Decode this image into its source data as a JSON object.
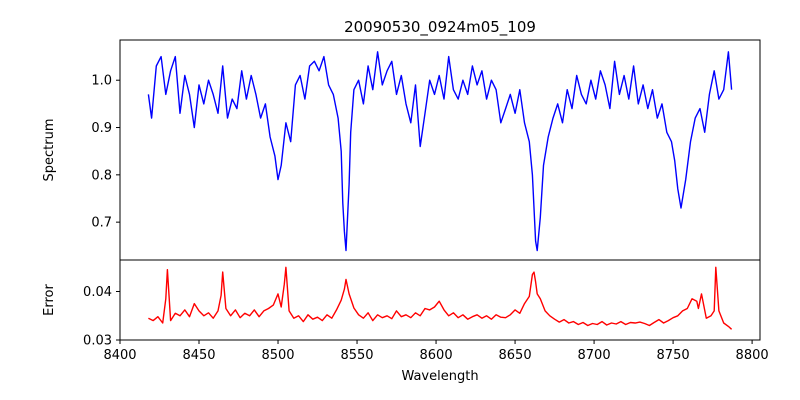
{
  "chart_data": [
    {
      "type": "line",
      "panel": "top",
      "title": "20090530_0924m05_109",
      "xlabel": "",
      "ylabel": "Spectrum",
      "xlim": [
        8400,
        8805
      ],
      "ylim": [
        0.62,
        1.085
      ],
      "yticks": [
        "0.7",
        "0.8",
        "0.9",
        "1.0"
      ],
      "grid": false,
      "series": [
        {
          "color": "#0000ff",
          "x": [
            8418,
            8420,
            8423,
            8426,
            8429,
            8432,
            8435,
            8438,
            8441,
            8444,
            8447,
            8450,
            8453,
            8456,
            8459,
            8462,
            8465,
            8468,
            8471,
            8474,
            8477,
            8480,
            8483,
            8486,
            8489,
            8492,
            8495,
            8498,
            8500,
            8502,
            8505,
            8508,
            8511,
            8514,
            8517,
            8520,
            8523,
            8526,
            8529,
            8532,
            8535,
            8538,
            8540,
            8541,
            8542,
            8543,
            8545,
            8546,
            8548,
            8551,
            8554,
            8557,
            8560,
            8563,
            8566,
            8569,
            8572,
            8575,
            8578,
            8581,
            8584,
            8587,
            8590,
            8593,
            8596,
            8599,
            8602,
            8605,
            8608,
            8611,
            8614,
            8617,
            8620,
            8623,
            8626,
            8629,
            8632,
            8635,
            8638,
            8641,
            8644,
            8647,
            8650,
            8653,
            8656,
            8659,
            8661,
            8662,
            8663,
            8664,
            8666,
            8668,
            8671,
            8674,
            8677,
            8680,
            8683,
            8686,
            8689,
            8692,
            8695,
            8698,
            8701,
            8704,
            8707,
            8710,
            8713,
            8716,
            8719,
            8722,
            8725,
            8728,
            8731,
            8734,
            8737,
            8740,
            8743,
            8746,
            8749,
            8751,
            8753,
            8755,
            8758,
            8761,
            8764,
            8767,
            8770,
            8773,
            8776,
            8779,
            8782,
            8785,
            8787
          ],
          "y": [
            0.97,
            0.92,
            1.03,
            1.05,
            0.97,
            1.02,
            1.05,
            0.93,
            1.01,
            0.97,
            0.9,
            0.99,
            0.95,
            1.0,
            0.97,
            0.93,
            1.03,
            0.92,
            0.96,
            0.94,
            1.02,
            0.96,
            1.01,
            0.97,
            0.92,
            0.95,
            0.88,
            0.84,
            0.79,
            0.82,
            0.91,
            0.87,
            0.99,
            1.01,
            0.96,
            1.03,
            1.04,
            1.02,
            1.05,
            0.99,
            0.97,
            0.92,
            0.85,
            0.74,
            0.68,
            0.64,
            0.78,
            0.89,
            0.98,
            1.0,
            0.95,
            1.03,
            0.98,
            1.06,
            0.99,
            1.02,
            1.04,
            0.97,
            1.01,
            0.95,
            0.91,
            0.99,
            0.86,
            0.93,
            1.0,
            0.97,
            1.01,
            0.96,
            1.05,
            0.98,
            0.96,
            1.0,
            0.97,
            1.03,
            0.99,
            1.02,
            0.96,
            1.0,
            0.98,
            0.91,
            0.94,
            0.97,
            0.93,
            0.98,
            0.91,
            0.87,
            0.8,
            0.73,
            0.66,
            0.64,
            0.71,
            0.82,
            0.88,
            0.92,
            0.95,
            0.91,
            0.98,
            0.94,
            1.01,
            0.97,
            0.95,
            1.0,
            0.96,
            1.02,
            0.99,
            0.94,
            1.04,
            0.97,
            1.01,
            0.96,
            1.03,
            0.95,
            0.99,
            0.94,
            0.98,
            0.92,
            0.95,
            0.89,
            0.87,
            0.83,
            0.77,
            0.73,
            0.79,
            0.87,
            0.92,
            0.94,
            0.89,
            0.97,
            1.02,
            0.96,
            0.98,
            1.06,
            0.98
          ]
        }
      ]
    },
    {
      "type": "line",
      "panel": "bottom",
      "title": "",
      "xlabel": "Wavelength",
      "ylabel": "Error",
      "xlim": [
        8400,
        8805
      ],
      "ylim": [
        0.03,
        0.0465
      ],
      "xticks": [
        "8400",
        "8450",
        "8500",
        "8550",
        "8600",
        "8650",
        "8700",
        "8750",
        "8800"
      ],
      "yticks": [
        "0.03",
        "0.04"
      ],
      "grid": false,
      "series": [
        {
          "color": "#ff0000",
          "x": [
            8418,
            8421,
            8424,
            8427,
            8429,
            8430,
            8432,
            8435,
            8438,
            8441,
            8444,
            8447,
            8450,
            8453,
            8456,
            8459,
            8462,
            8464,
            8465,
            8467,
            8470,
            8473,
            8476,
            8479,
            8482,
            8485,
            8488,
            8491,
            8494,
            8497,
            8500,
            8502,
            8504,
            8505,
            8507,
            8510,
            8513,
            8516,
            8519,
            8522,
            8525,
            8528,
            8531,
            8534,
            8537,
            8540,
            8542,
            8543,
            8545,
            8548,
            8551,
            8554,
            8557,
            8560,
            8563,
            8566,
            8569,
            8572,
            8575,
            8578,
            8581,
            8584,
            8587,
            8590,
            8593,
            8596,
            8599,
            8602,
            8605,
            8608,
            8611,
            8614,
            8617,
            8620,
            8623,
            8626,
            8629,
            8632,
            8635,
            8638,
            8641,
            8644,
            8647,
            8650,
            8653,
            8656,
            8659,
            8661,
            8662,
            8663,
            8664,
            8666,
            8669,
            8672,
            8675,
            8678,
            8681,
            8684,
            8687,
            8690,
            8693,
            8696,
            8699,
            8702,
            8705,
            8708,
            8711,
            8714,
            8717,
            8720,
            8723,
            8726,
            8729,
            8732,
            8735,
            8738,
            8741,
            8744,
            8747,
            8750,
            8753,
            8756,
            8759,
            8762,
            8765,
            8766,
            8768,
            8771,
            8774,
            8776,
            8777,
            8779,
            8782,
            8785,
            8787
          ],
          "y": [
            0.0345,
            0.034,
            0.0348,
            0.0335,
            0.0385,
            0.0445,
            0.034,
            0.0355,
            0.035,
            0.0362,
            0.0348,
            0.0375,
            0.036,
            0.035,
            0.0356,
            0.0345,
            0.036,
            0.0392,
            0.044,
            0.0365,
            0.035,
            0.0362,
            0.0346,
            0.0355,
            0.035,
            0.0362,
            0.0348,
            0.036,
            0.0365,
            0.0372,
            0.0395,
            0.0368,
            0.0415,
            0.045,
            0.036,
            0.0345,
            0.035,
            0.0338,
            0.0352,
            0.0343,
            0.0347,
            0.034,
            0.0352,
            0.0345,
            0.0362,
            0.0382,
            0.0405,
            0.0425,
            0.0395,
            0.0366,
            0.0352,
            0.0345,
            0.0356,
            0.034,
            0.0352,
            0.0346,
            0.035,
            0.0344,
            0.036,
            0.0348,
            0.0352,
            0.0346,
            0.0356,
            0.035,
            0.0365,
            0.0362,
            0.0368,
            0.038,
            0.0362,
            0.035,
            0.0356,
            0.0346,
            0.0352,
            0.0343,
            0.0348,
            0.0352,
            0.0345,
            0.035,
            0.0343,
            0.0352,
            0.0347,
            0.0346,
            0.0352,
            0.0362,
            0.0355,
            0.0375,
            0.039,
            0.0435,
            0.044,
            0.042,
            0.0395,
            0.0385,
            0.036,
            0.035,
            0.0343,
            0.0337,
            0.0342,
            0.0335,
            0.0338,
            0.0332,
            0.0336,
            0.033,
            0.0334,
            0.0332,
            0.0338,
            0.0331,
            0.0335,
            0.0333,
            0.0338,
            0.0332,
            0.0336,
            0.0335,
            0.0337,
            0.0334,
            0.033,
            0.0336,
            0.0342,
            0.0335,
            0.034,
            0.0346,
            0.035,
            0.036,
            0.0365,
            0.0385,
            0.038,
            0.0365,
            0.0395,
            0.0345,
            0.035,
            0.036,
            0.045,
            0.036,
            0.0335,
            0.0328,
            0.0322
          ]
        }
      ]
    }
  ]
}
